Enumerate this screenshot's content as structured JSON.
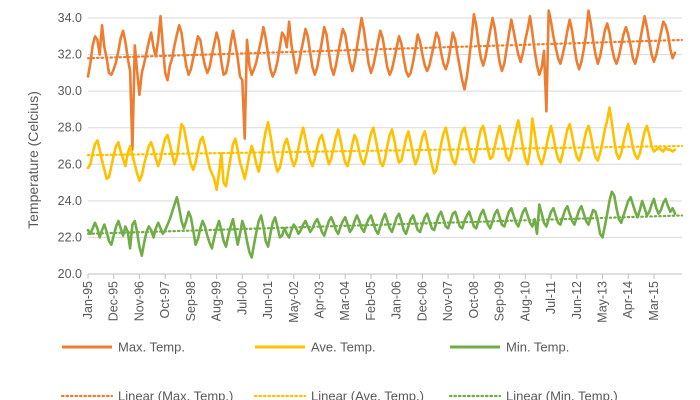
{
  "chart_data": {
    "type": "line",
    "title": "",
    "xlabel": "",
    "ylabel": "Temperature (Celcius)",
    "ylim": [
      20.0,
      34.0
    ],
    "y_ticks": [
      "20.0",
      "22.0",
      "24.0",
      "26.0",
      "28.0",
      "30.0",
      "32.0",
      "34.0"
    ],
    "x_range": [
      0,
      254
    ],
    "x_ticks": [
      {
        "i": 0,
        "label": "Jan-95"
      },
      {
        "i": 11,
        "label": "Dec-95"
      },
      {
        "i": 22,
        "label": "Nov-96"
      },
      {
        "i": 33,
        "label": "Oct-97"
      },
      {
        "i": 44,
        "label": "Sep-98"
      },
      {
        "i": 55,
        "label": "Aug-99"
      },
      {
        "i": 66,
        "label": "Jul-00"
      },
      {
        "i": 77,
        "label": "Jun-01"
      },
      {
        "i": 88,
        "label": "May-02"
      },
      {
        "i": 99,
        "label": "Apr-03"
      },
      {
        "i": 110,
        "label": "Mar-04"
      },
      {
        "i": 121,
        "label": "Feb-05"
      },
      {
        "i": 132,
        "label": "Jan-06"
      },
      {
        "i": 143,
        "label": "Dec-06"
      },
      {
        "i": 154,
        "label": "Nov-07"
      },
      {
        "i": 165,
        "label": "Oct-08"
      },
      {
        "i": 176,
        "label": "Sep-09"
      },
      {
        "i": 187,
        "label": "Aug-10"
      },
      {
        "i": 198,
        "label": "Jul-11"
      },
      {
        "i": 209,
        "label": "Jun-12"
      },
      {
        "i": 220,
        "label": "May-13"
      },
      {
        "i": 231,
        "label": "Apr-14"
      },
      {
        "i": 242,
        "label": "Mar-15"
      }
    ],
    "series": [
      {
        "name": "Max. Temp.",
        "color": "#ED7D31",
        "x_start": 0,
        "values": [
          30.8,
          31.5,
          32.5,
          33.0,
          32.8,
          32.0,
          33.6,
          32.4,
          31.8,
          31.0,
          30.9,
          31.2,
          31.6,
          32.2,
          32.9,
          33.3,
          32.7,
          31.8,
          31.1,
          26.8,
          32.5,
          31.1,
          29.8,
          31.0,
          31.5,
          32.1,
          32.7,
          33.2,
          32.4,
          31.9,
          32.8,
          34.1,
          32.5,
          31.0,
          30.6,
          31.4,
          31.8,
          32.5,
          33.1,
          33.6,
          33.2,
          32.2,
          31.4,
          30.9,
          31.2,
          31.8,
          32.4,
          33.0,
          32.8,
          32.0,
          31.4,
          31.0,
          31.3,
          32.0,
          32.6,
          33.2,
          32.7,
          31.6,
          30.9,
          31.0,
          31.6,
          32.6,
          33.3,
          32.6,
          31.8,
          30.8,
          30.6,
          27.4,
          32.8,
          31.4,
          30.9,
          31.2,
          31.6,
          32.2,
          32.8,
          33.5,
          32.9,
          32.0,
          31.2,
          30.8,
          31.1,
          31.6,
          32.4,
          33.2,
          33.0,
          32.4,
          33.8,
          32.5,
          31.8,
          31.0,
          31.4,
          32.1,
          32.7,
          33.4,
          33.0,
          32.1,
          31.3,
          30.9,
          31.3,
          32.0,
          32.7,
          33.5,
          33.1,
          32.1,
          31.3,
          30.9,
          31.4,
          32.1,
          32.8,
          33.4,
          33.1,
          32.3,
          31.6,
          31.1,
          31.6,
          32.4,
          33.2,
          34.0,
          33.3,
          32.4,
          31.5,
          31.0,
          31.4,
          32.0,
          32.7,
          33.3,
          32.9,
          32.1,
          31.3,
          30.9,
          31.2,
          31.8,
          32.4,
          33.0,
          32.6,
          31.8,
          31.1,
          30.8,
          31.0,
          31.6,
          32.3,
          33.1,
          32.7,
          32.0,
          31.4,
          31.1,
          31.4,
          32.0,
          32.6,
          33.2,
          32.9,
          32.1,
          31.5,
          31.2,
          31.6,
          32.4,
          33.2,
          32.8,
          32.0,
          31.3,
          30.6,
          30.1,
          30.8,
          31.8,
          32.9,
          34.2,
          33.6,
          32.6,
          31.8,
          31.4,
          31.9,
          32.6,
          33.3,
          34.0,
          33.4,
          32.4,
          31.6,
          31.1,
          31.5,
          32.3,
          33.1,
          33.9,
          33.3,
          32.6,
          32.0,
          31.6,
          32.1,
          32.8,
          33.4,
          34.1,
          33.2,
          32.2,
          31.4,
          30.9,
          31.3,
          32.2,
          28.9,
          34.4,
          33.8,
          33.0,
          32.4,
          31.8,
          31.5,
          32.0,
          32.6,
          33.3,
          33.9,
          33.3,
          32.4,
          31.6,
          31.2,
          31.6,
          32.3,
          33.1,
          34.4,
          33.7,
          32.8,
          32.0,
          31.5,
          31.9,
          32.6,
          33.3,
          33.7,
          33.2,
          32.4,
          31.8,
          31.5,
          31.9,
          32.5,
          33.1,
          33.5,
          33.1,
          32.5,
          31.8,
          31.5,
          32.0,
          32.7,
          33.4,
          34.1,
          33.5,
          32.7,
          32.0,
          31.6,
          32.0,
          32.6,
          33.2,
          33.8,
          33.6,
          33.1,
          32.3,
          31.8,
          32.1
        ]
      },
      {
        "name": "Ave. Temp.",
        "color": "#FFC000",
        "x_start": 0,
        "values": [
          25.8,
          26.0,
          26.6,
          27.1,
          27.3,
          26.8,
          26.2,
          25.7,
          25.2,
          25.3,
          25.9,
          26.5,
          27.0,
          27.2,
          26.7,
          26.3,
          25.9,
          26.6,
          27.0,
          26.5,
          26.0,
          25.5,
          25.1,
          25.4,
          26.0,
          26.5,
          27.0,
          27.2,
          26.8,
          26.3,
          25.9,
          26.3,
          26.9,
          27.4,
          27.6,
          27.1,
          26.5,
          26.0,
          26.4,
          27.3,
          28.2,
          28.0,
          27.3,
          26.6,
          26.0,
          25.7,
          26.1,
          26.7,
          27.3,
          27.5,
          27.0,
          26.4,
          25.8,
          25.5,
          25.2,
          24.6,
          25.5,
          26.6,
          25.0,
          24.8,
          25.6,
          26.4,
          27.1,
          27.4,
          26.8,
          26.1,
          25.7,
          25.2,
          25.8,
          26.5,
          27.0,
          26.6,
          26.0,
          25.6,
          26.2,
          27.1,
          27.8,
          28.3,
          27.6,
          26.8,
          26.1,
          25.6,
          25.8,
          26.4,
          27.1,
          27.4,
          26.9,
          26.3,
          25.9,
          26.2,
          26.9,
          27.5,
          28.0,
          27.4,
          26.7,
          26.2,
          25.9,
          26.3,
          26.9,
          27.4,
          27.6,
          27.1,
          26.5,
          26.0,
          26.3,
          26.9,
          27.5,
          27.9,
          27.3,
          26.6,
          26.1,
          25.9,
          26.4,
          27.1,
          27.6,
          27.3,
          26.7,
          26.2,
          26.0,
          26.5,
          27.1,
          27.7,
          28.0,
          27.4,
          26.7,
          26.1,
          25.9,
          26.3,
          27.0,
          27.6,
          27.9,
          27.3,
          26.6,
          26.1,
          26.2,
          26.8,
          27.4,
          27.8,
          27.2,
          26.5,
          26.0,
          26.3,
          26.9,
          27.5,
          27.8,
          27.2,
          26.6,
          26.0,
          25.5,
          25.7,
          26.4,
          27.1,
          27.7,
          28.0,
          27.4,
          26.7,
          26.2,
          26.0,
          26.5,
          27.2,
          27.8,
          28.0,
          27.4,
          26.8,
          26.3,
          26.1,
          26.6,
          27.3,
          27.9,
          28.1,
          27.5,
          26.8,
          26.3,
          26.4,
          27.0,
          27.6,
          28.1,
          27.6,
          27.0,
          26.4,
          26.2,
          26.6,
          27.3,
          27.9,
          28.4,
          27.7,
          26.9,
          26.3,
          26.0,
          26.7,
          28.5,
          27.7,
          26.8,
          26.3,
          26.0,
          26.4,
          27.0,
          27.6,
          28.1,
          27.5,
          26.8,
          26.3,
          26.1,
          26.6,
          27.3,
          27.9,
          28.2,
          27.6,
          26.9,
          26.4,
          26.2,
          26.6,
          27.2,
          27.8,
          28.1,
          27.6,
          26.9,
          26.4,
          26.2,
          26.6,
          27.2,
          27.9,
          28.4,
          29.1,
          28.3,
          27.3,
          26.6,
          26.3,
          26.6,
          27.2,
          27.8,
          28.2,
          27.6,
          26.9,
          26.5,
          26.3,
          26.6,
          27.2,
          27.8,
          28.1,
          27.6,
          27.0,
          26.7,
          26.8,
          26.9,
          26.8,
          26.7,
          26.9,
          26.8,
          26.8,
          26.7,
          26.8
        ]
      },
      {
        "name": "Min. Temp.",
        "color": "#70AD47",
        "x_start": 0,
        "values": [
          22.4,
          22.2,
          22.5,
          22.8,
          22.5,
          22.0,
          22.4,
          22.7,
          22.3,
          21.8,
          21.6,
          22.1,
          22.6,
          22.9,
          22.5,
          22.1,
          22.6,
          22.3,
          21.4,
          22.7,
          22.9,
          22.3,
          21.5,
          21.0,
          21.7,
          22.3,
          22.6,
          22.4,
          22.0,
          22.5,
          22.8,
          22.5,
          22.2,
          22.4,
          22.7,
          23.0,
          23.4,
          23.8,
          24.2,
          23.6,
          22.9,
          22.5,
          22.9,
          23.4,
          23.1,
          22.4,
          21.6,
          21.9,
          22.5,
          22.9,
          22.6,
          22.1,
          21.7,
          21.4,
          22.0,
          22.5,
          22.9,
          22.4,
          21.8,
          21.5,
          22.1,
          22.6,
          23.0,
          22.3,
          21.6,
          22.2,
          22.9,
          22.5,
          21.8,
          21.2,
          20.9,
          21.6,
          22.3,
          22.9,
          23.2,
          22.6,
          21.8,
          21.5,
          22.2,
          22.8,
          23.1,
          22.6,
          22.0,
          22.1,
          22.5,
          22.2,
          22.0,
          22.4,
          22.7,
          22.5,
          22.2,
          22.4,
          22.7,
          22.9,
          22.6,
          22.3,
          22.5,
          22.8,
          23.0,
          22.7,
          22.3,
          22.1,
          22.5,
          22.9,
          23.1,
          22.8,
          22.4,
          22.2,
          22.6,
          22.9,
          23.1,
          22.7,
          22.3,
          22.5,
          22.9,
          23.2,
          22.9,
          22.5,
          22.3,
          22.7,
          23.0,
          23.2,
          22.8,
          22.4,
          22.2,
          22.6,
          23.0,
          23.3,
          22.9,
          22.5,
          22.3,
          22.7,
          23.1,
          23.3,
          22.9,
          22.4,
          22.2,
          22.6,
          23.0,
          23.2,
          22.8,
          22.4,
          22.3,
          22.7,
          23.1,
          23.3,
          22.9,
          22.5,
          22.4,
          22.8,
          23.2,
          23.4,
          23.0,
          22.6,
          22.5,
          22.9,
          23.3,
          23.4,
          23.0,
          22.6,
          22.5,
          22.9,
          23.2,
          23.4,
          23.0,
          22.6,
          22.5,
          22.9,
          23.3,
          23.5,
          23.1,
          22.7,
          22.5,
          22.9,
          23.3,
          23.5,
          23.1,
          22.7,
          22.6,
          23.0,
          23.4,
          23.6,
          23.2,
          22.8,
          22.6,
          23.0,
          23.4,
          23.6,
          23.2,
          22.8,
          22.6,
          23.0,
          22.2,
          23.8,
          23.3,
          22.8,
          22.6,
          23.0,
          23.4,
          23.6,
          23.2,
          22.8,
          22.7,
          23.1,
          23.5,
          23.7,
          23.3,
          22.9,
          22.7,
          23.1,
          23.5,
          23.7,
          23.3,
          22.9,
          22.7,
          23.1,
          23.5,
          23.4,
          22.9,
          22.2,
          22.0,
          22.6,
          23.3,
          24.0,
          24.5,
          24.3,
          23.6,
          23.0,
          22.8,
          23.2,
          23.6,
          24.0,
          24.2,
          23.8,
          23.4,
          23.1,
          23.5,
          24.0,
          23.6,
          23.2,
          23.4,
          23.8,
          24.1,
          23.6,
          23.3,
          23.5,
          23.9,
          24.1,
          23.7,
          23.4,
          23.6,
          23.3
        ]
      }
    ],
    "trendlines": [
      {
        "name": "Linear (Max. Temp.)",
        "color": "#ED7D31",
        "start": 31.8,
        "end": 32.8
      },
      {
        "name": "Linear (Ave. Temp.)",
        "color": "#FFC000",
        "start": 26.5,
        "end": 27.0
      },
      {
        "name": "Linear (Min. Temp.)",
        "color": "#70AD47",
        "start": 22.2,
        "end": 23.2
      }
    ],
    "legend": {
      "placement": "bottom",
      "entries": [
        "Max. Temp.",
        "Ave. Temp.",
        "Min. Temp.",
        "Linear (Max. Temp.)",
        "Linear (Ave. Temp.)",
        "Linear (Min. Temp.)"
      ]
    },
    "grid": true
  }
}
